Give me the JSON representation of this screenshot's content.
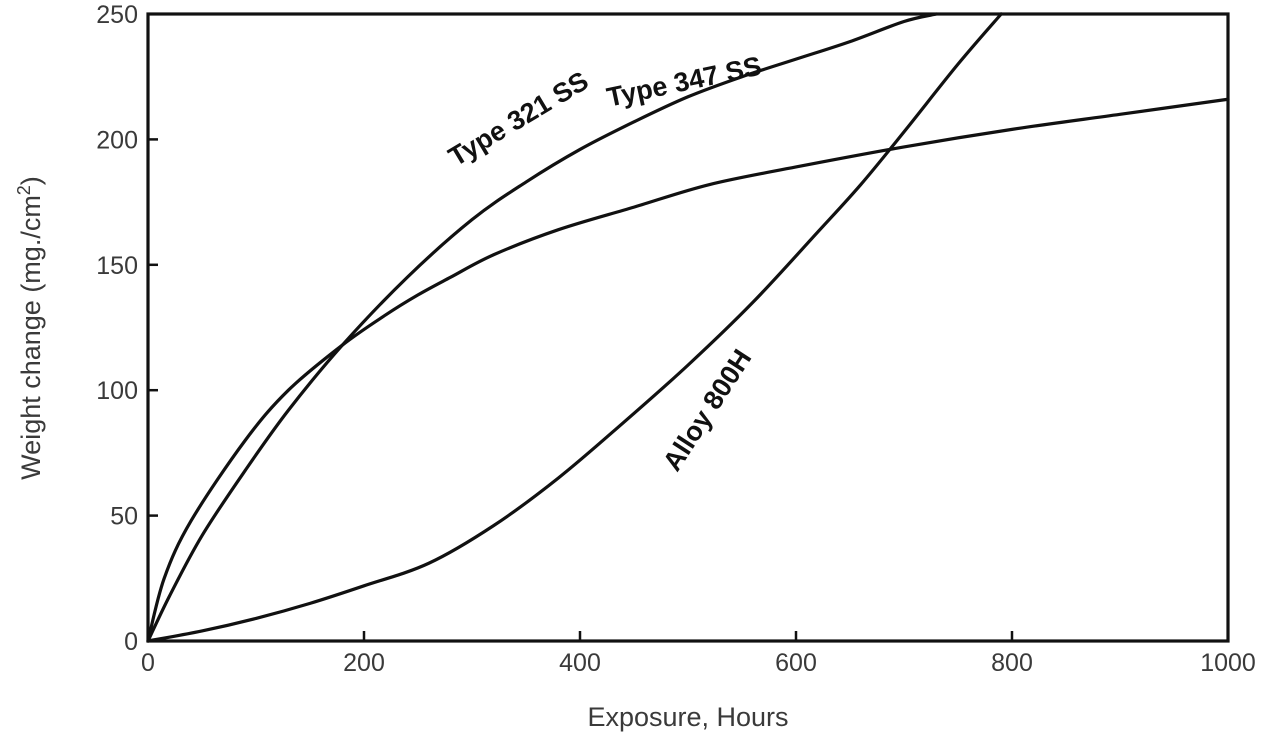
{
  "chart_data": {
    "type": "line",
    "xlabel": "Exposure, Hours",
    "ylabel": "Weight change (mg./cm",
    "ylabel_sup": "2",
    "ylabel_close": ")",
    "xlim": [
      0,
      1000
    ],
    "ylim": [
      0,
      250
    ],
    "xticks": [
      0,
      200,
      400,
      600,
      800,
      1000
    ],
    "yticks": [
      0,
      50,
      100,
      150,
      200,
      250
    ],
    "grid": false,
    "legend": "none",
    "series": [
      {
        "name": "Type 321 SS",
        "x": [
          0,
          20,
          50,
          90,
          130,
          180,
          240,
          300,
          350,
          400,
          450,
          500,
          550,
          600,
          650,
          700,
          730
        ],
        "y": [
          0,
          18,
          42,
          68,
          92,
          118,
          145,
          168,
          183,
          196,
          207,
          217,
          225,
          232,
          239,
          247,
          250
        ]
      },
      {
        "name": "Type 347 SS",
        "x": [
          0,
          15,
          40,
          90,
          130,
          180,
          220,
          250,
          280,
          320,
          380,
          450,
          520,
          600,
          700,
          800,
          900,
          1000
        ],
        "y": [
          0,
          25,
          48,
          80,
          100,
          118,
          130,
          138,
          145,
          154,
          164,
          173,
          182,
          189,
          197,
          204,
          210,
          216
        ]
      },
      {
        "name": "Alloy 800H",
        "x": [
          0,
          50,
          100,
          150,
          200,
          260,
          320,
          380,
          440,
          500,
          560,
          620,
          660,
          700,
          750,
          790
        ],
        "y": [
          0,
          4,
          9,
          15,
          22,
          31,
          46,
          65,
          87,
          110,
          135,
          163,
          182,
          203,
          230,
          250
        ]
      }
    ],
    "annotations": [
      {
        "text": "Type 321 SS",
        "series": 0
      },
      {
        "text": "Type 347 SS",
        "series": 1
      },
      {
        "text": "Alloy 800H",
        "series": 2
      }
    ]
  }
}
